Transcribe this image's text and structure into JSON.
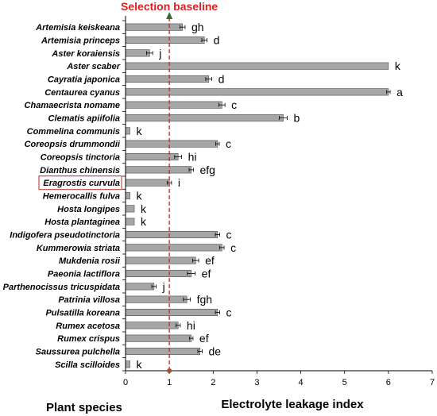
{
  "chart_data": {
    "type": "bar",
    "orientation": "horizontal",
    "title": "",
    "xlabel": "Electrolyte leakage index",
    "ylabel": "Plant species",
    "xlim": [
      0,
      7
    ],
    "xticks": [
      "0",
      "1",
      "2",
      "3",
      "4",
      "5",
      "6",
      "7"
    ],
    "grid": false,
    "bar_color": "#a6a6a6",
    "baseline": {
      "label": "Selection baseline",
      "value": 1,
      "color": "#d62020"
    },
    "highlight_color": "#c0504d",
    "categories": [
      {
        "name": "Artemisia keiskeana",
        "value": 1.3,
        "err": 0.06,
        "sig": "gh"
      },
      {
        "name": "Artemisia princeps",
        "value": 1.8,
        "err": 0.06,
        "sig": "d"
      },
      {
        "name": "Aster koraiensis",
        "value": 0.55,
        "err": 0.07,
        "sig": "j"
      },
      {
        "name": "Aster scaber",
        "value": 6.0,
        "err": 0.0,
        "sig": "k"
      },
      {
        "name": "Cayratia japonica",
        "value": 1.9,
        "err": 0.07,
        "sig": "d"
      },
      {
        "name": "Centaurea cyanus",
        "value": 6.0,
        "err": 0.04,
        "sig": "a"
      },
      {
        "name": "Chamaecrista nomame",
        "value": 2.2,
        "err": 0.07,
        "sig": "c"
      },
      {
        "name": "Clematis apiifolia",
        "value": 3.6,
        "err": 0.09,
        "sig": "b"
      },
      {
        "name": "Commelina communis",
        "value": 0.1,
        "err": 0.0,
        "sig": "k"
      },
      {
        "name": "Coreopsis drummondii",
        "value": 2.1,
        "err": 0.04,
        "sig": "c"
      },
      {
        "name": "Coreopsis tinctoria",
        "value": 1.2,
        "err": 0.08,
        "sig": "hi"
      },
      {
        "name": "Dianthus chinensis",
        "value": 1.5,
        "err": 0.05,
        "sig": "efg"
      },
      {
        "name": "Eragrostis curvula",
        "value": 1.0,
        "err": 0.05,
        "sig": "i",
        "highlight": true
      },
      {
        "name": "Hemerocallis fulva",
        "value": 0.1,
        "err": 0.0,
        "sig": "k"
      },
      {
        "name": "Hosta longipes",
        "value": 0.2,
        "err": 0.0,
        "sig": "k"
      },
      {
        "name": "Hosta plantaginea",
        "value": 0.2,
        "err": 0.0,
        "sig": "k"
      },
      {
        "name": "Indigofera pseudotinctoria",
        "value": 2.1,
        "err": 0.05,
        "sig": "c"
      },
      {
        "name": "Kummerowia striata",
        "value": 2.2,
        "err": 0.05,
        "sig": "c"
      },
      {
        "name": "Mukdenia rosii",
        "value": 1.6,
        "err": 0.07,
        "sig": "ef"
      },
      {
        "name": "Paeonia lactiflora",
        "value": 1.5,
        "err": 0.09,
        "sig": "ef"
      },
      {
        "name": "Parthenocissus tricuspidata",
        "value": 0.65,
        "err": 0.05,
        "sig": "j"
      },
      {
        "name": "Patrinia villosa",
        "value": 1.4,
        "err": 0.08,
        "sig": "fgh"
      },
      {
        "name": "Pulsatilla koreana",
        "value": 2.1,
        "err": 0.05,
        "sig": "c"
      },
      {
        "name": "Rumex acetosa",
        "value": 1.2,
        "err": 0.05,
        "sig": "hi"
      },
      {
        "name": "Rumex crispus",
        "value": 1.5,
        "err": 0.04,
        "sig": "ef"
      },
      {
        "name": "Saussurea pulchella",
        "value": 1.7,
        "err": 0.05,
        "sig": "de"
      },
      {
        "name": "Scilla scilloides",
        "value": 0.1,
        "err": 0.0,
        "sig": "k"
      }
    ]
  }
}
